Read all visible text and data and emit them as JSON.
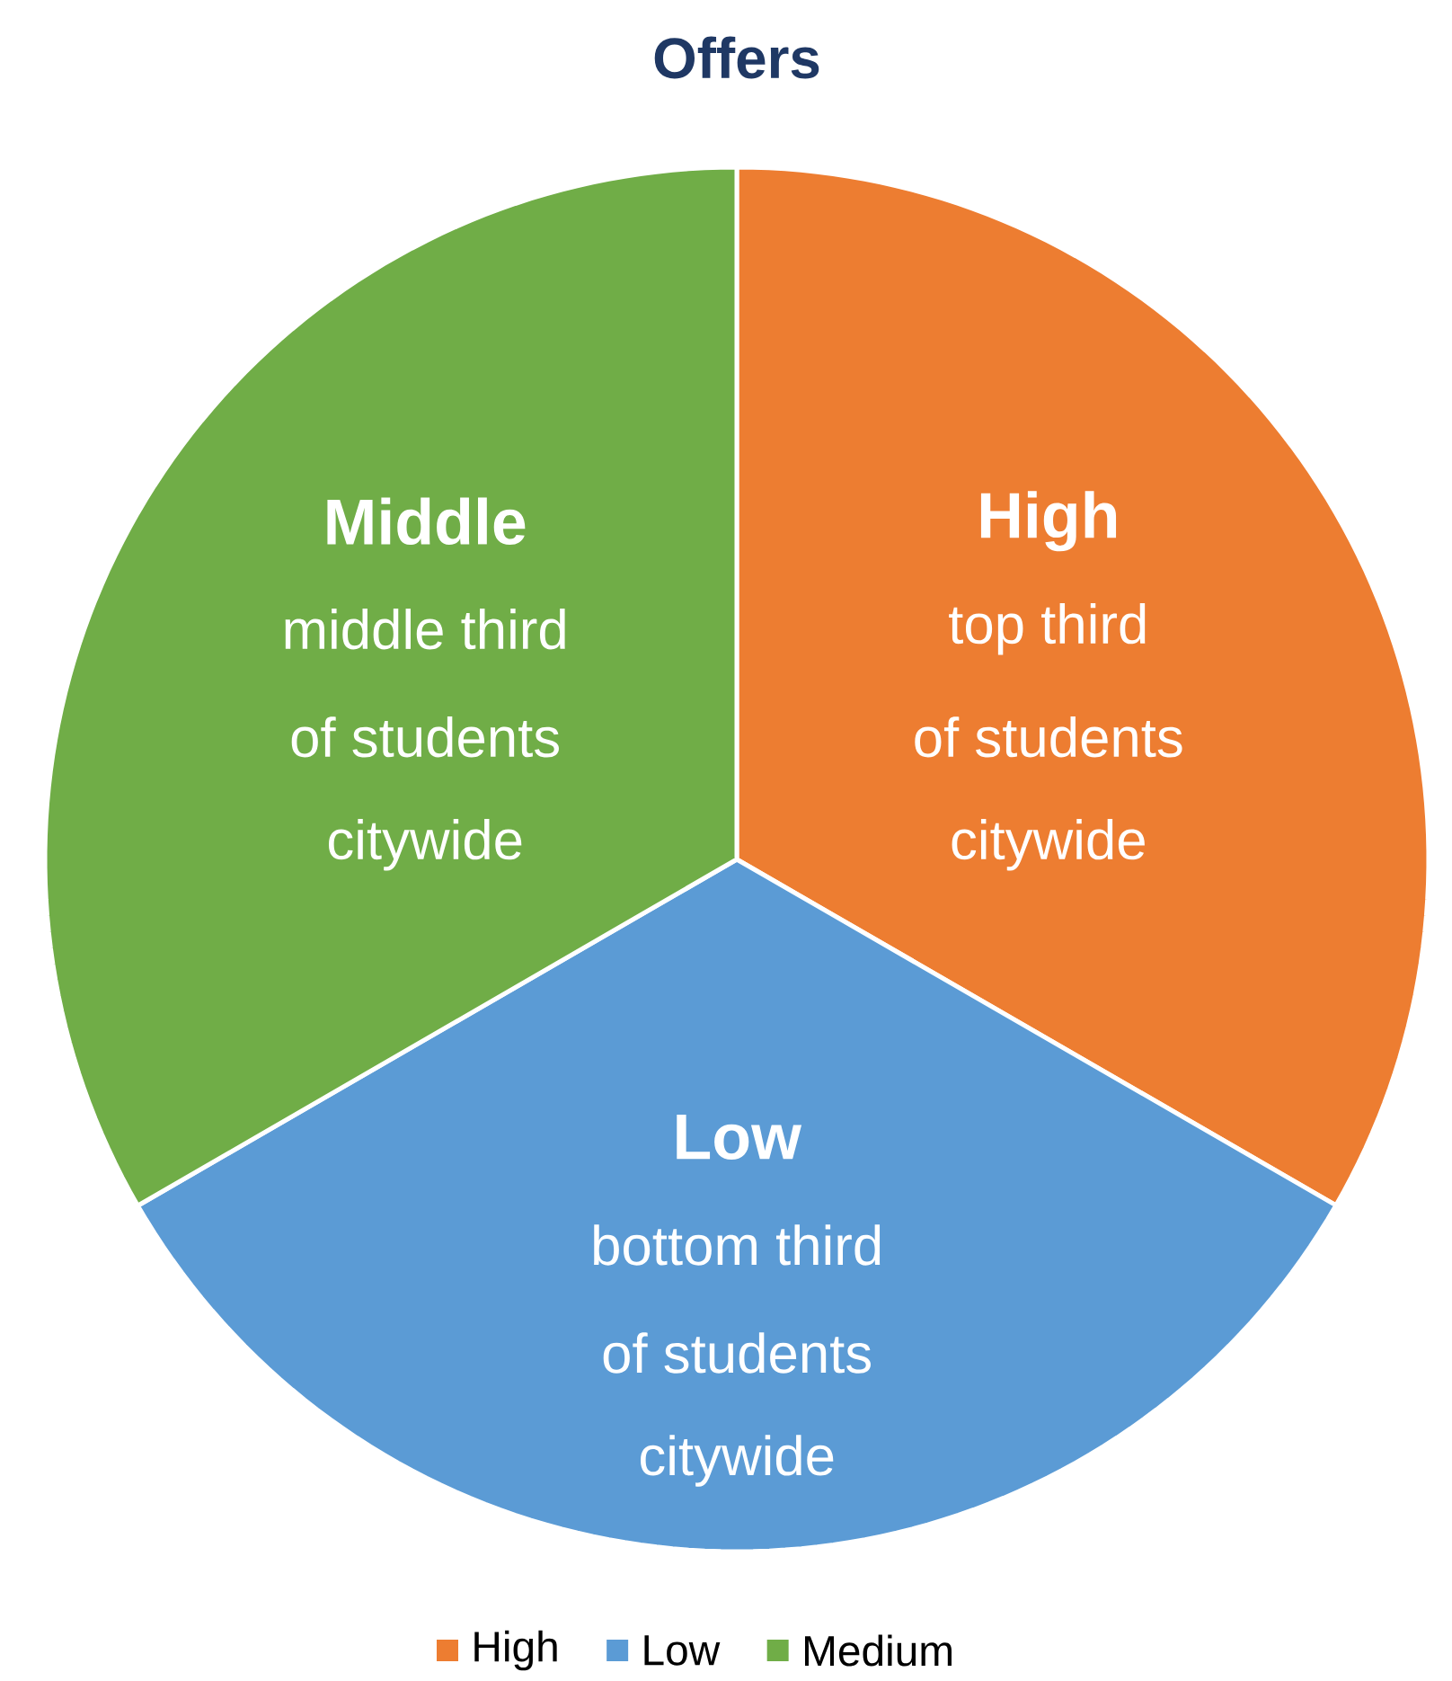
{
  "chart_data": {
    "type": "pie",
    "title": "Offers",
    "categories": [
      "High",
      "Low",
      "Medium"
    ],
    "values": [
      33.33,
      33.33,
      33.34
    ],
    "colors": [
      "#ed7d31",
      "#5b9bd5",
      "#70ad47"
    ],
    "legend": "bottom",
    "annotations": [
      "High",
      "top third",
      "of students",
      "citywide",
      "Low",
      "bottom third",
      "of students",
      "citywide",
      "Middle",
      "middle third",
      "of students",
      "citywide"
    ]
  }
}
